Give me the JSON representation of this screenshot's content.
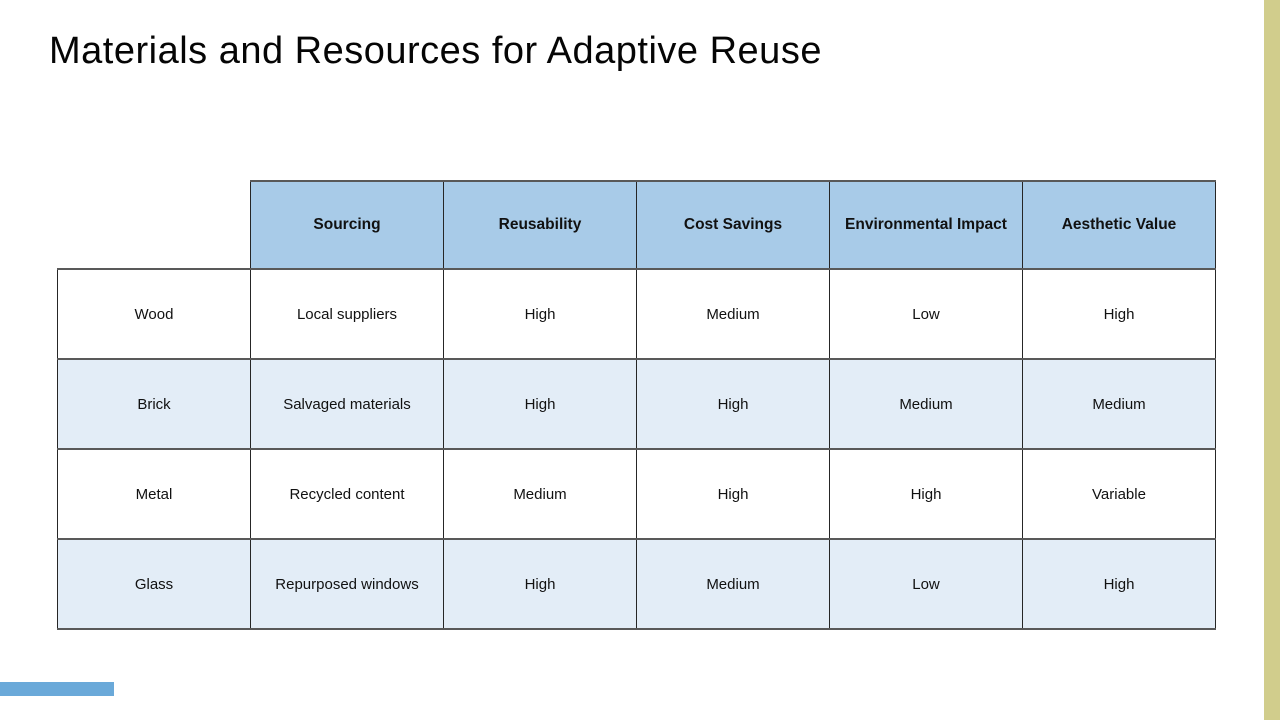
{
  "slide": {
    "title": "Materials and Resources for Adaptive Reuse"
  },
  "table": {
    "columns": [
      "Sourcing",
      "Reusability",
      "Cost Savings",
      "Environmental Impact",
      "Aesthetic Value"
    ],
    "rows": [
      {
        "label": "Wood",
        "cells": [
          "Local suppliers",
          "High",
          "Medium",
          "Low",
          "High"
        ]
      },
      {
        "label": "Brick",
        "cells": [
          "Salvaged materials",
          "High",
          "High",
          "Medium",
          "Medium"
        ]
      },
      {
        "label": "Metal",
        "cells": [
          "Recycled content",
          "Medium",
          "High",
          "High",
          "Variable"
        ]
      },
      {
        "label": "Glass",
        "cells": [
          "Repurposed windows",
          "High",
          "Medium",
          "Low",
          "High"
        ]
      }
    ]
  },
  "colors": {
    "header_fill": "#a8cbe8",
    "row_alt_fill": "#e3edf7",
    "side_accent": "#d1cd8c",
    "footer_accent": "#6aa9d9",
    "border_horizontal": "#595959",
    "border_vertical": "#262626"
  }
}
